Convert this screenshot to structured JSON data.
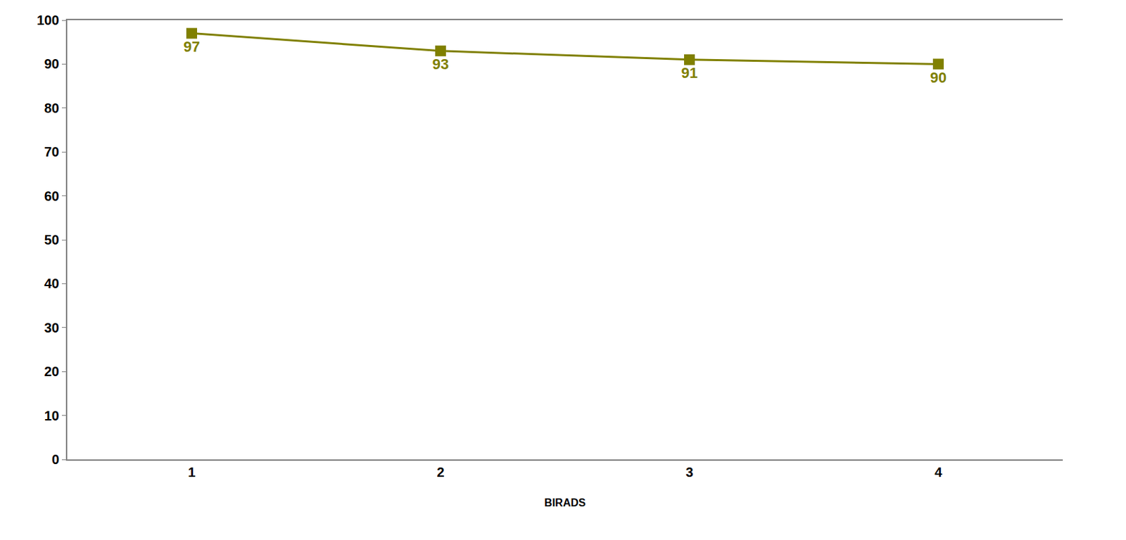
{
  "chart_data": {
    "type": "line",
    "x_label": "BIRADS",
    "categories": [
      "1",
      "2",
      "3",
      "4"
    ],
    "values": [
      97,
      93,
      91,
      90
    ],
    "color": "#808000",
    "marker": "square",
    "line_style": "solid",
    "data_labels": true,
    "ylim": [
      0,
      100
    ],
    "yticks": [
      0,
      10,
      20,
      30,
      40,
      50,
      60,
      70,
      80,
      90,
      100
    ],
    "grid": false
  }
}
